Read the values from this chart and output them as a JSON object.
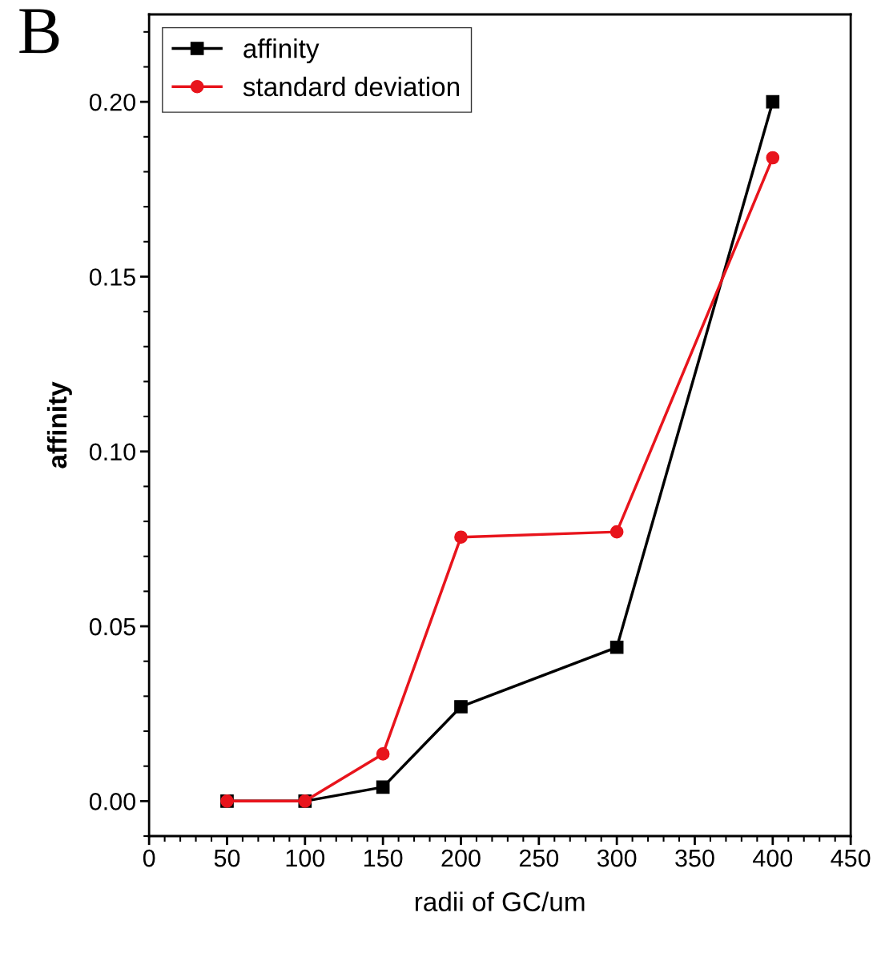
{
  "chart_data": {
    "type": "line",
    "xlabel": "radii of GC/um",
    "ylabel": "affinity",
    "annotations": [
      "B"
    ],
    "x": [
      50,
      100,
      150,
      200,
      300,
      400
    ],
    "series": [
      {
        "name": "affinity",
        "color": "#000000",
        "marker": "square",
        "values": [
          0,
          0,
          0.004,
          0.027,
          0.044,
          0.2
        ]
      },
      {
        "name": "standard deviation",
        "color": "#e8141c",
        "marker": "circle",
        "values": [
          0,
          0,
          0.0135,
          0.0755,
          0.077,
          0.184
        ]
      }
    ],
    "xlim": [
      0,
      450
    ],
    "xticks": [
      0,
      50,
      100,
      150,
      200,
      250,
      300,
      350,
      400,
      450
    ],
    "ylim": [
      -0.01,
      0.225
    ],
    "yticks": [
      {
        "value": 0,
        "label": "0.00"
      },
      {
        "value": 0.05,
        "label": "0.05"
      },
      {
        "value": 0.1,
        "label": "0.10"
      },
      {
        "value": 0.15,
        "label": "0.15"
      },
      {
        "value": 0.2,
        "label": "0.20"
      }
    ],
    "legend": "top left",
    "grid": false,
    "line_style": "solid"
  }
}
